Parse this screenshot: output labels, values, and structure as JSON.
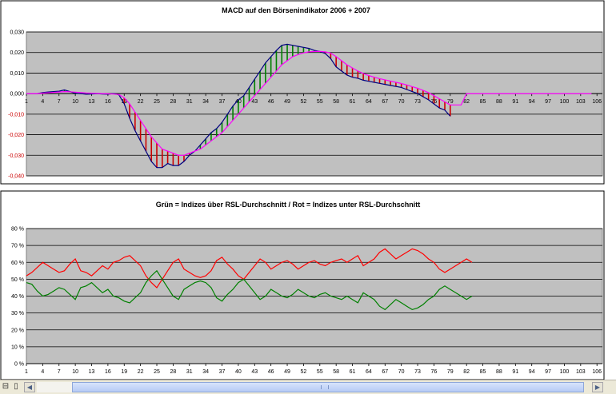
{
  "chart_data": [
    {
      "type": "line",
      "title": "MACD auf den Börsenindikator 2006 + 2007",
      "x_start": 1,
      "x_tick_labels": [
        "1",
        "4",
        "7",
        "10",
        "13",
        "16",
        "19",
        "22",
        "25",
        "28",
        "31",
        "34",
        "37",
        "40",
        "43",
        "46",
        "49",
        "52",
        "55",
        "58",
        "61",
        "64",
        "67",
        "70",
        "73",
        "76",
        "79",
        "82",
        "85",
        "88",
        "91",
        "94",
        "97",
        "100",
        "103",
        "106"
      ],
      "y_tick_labels": [
        "0,030",
        "0,020",
        "0,010",
        "0,000",
        "-0,010",
        "-0,020",
        "-0,030",
        "-0,040"
      ],
      "ylim": [
        -0.04,
        0.03
      ],
      "xlim": [
        1,
        107
      ],
      "grid": true,
      "series": [
        {
          "color": "#000080",
          "values": [
            0,
            0,
            0,
            0.0005,
            0.0008,
            0.001,
            0.0012,
            0.0018,
            0.001,
            0.0002,
            0,
            -0.0003,
            -0.0002,
            0,
            -0.0002,
            -0.0003,
            0,
            -0.0005,
            -0.005,
            -0.012,
            -0.018,
            -0.023,
            -0.028,
            -0.033,
            -0.036,
            -0.036,
            -0.034,
            -0.035,
            -0.035,
            -0.033,
            -0.03,
            -0.028,
            -0.025,
            -0.022,
            -0.019,
            -0.017,
            -0.014,
            -0.01,
            -0.006,
            -0.003,
            -0.001,
            0.003,
            0.007,
            0.011,
            0.015,
            0.018,
            0.021,
            0.0235,
            0.024,
            0.0235,
            0.023,
            0.0225,
            0.022,
            0.021,
            0.0205,
            0.0195,
            0.017,
            0.013,
            0.011,
            0.009,
            0.008,
            0.0075,
            0.0065,
            0.006,
            0.0055,
            0.005,
            0.0045,
            0.004,
            0.0035,
            0.003,
            0.002,
            0.001,
            0,
            -0.0015,
            -0.003,
            -0.005,
            -0.007,
            -0.008,
            -0.011
          ]
        },
        {
          "color": "#ff00ff",
          "values": [
            0,
            0,
            0,
            0.0002,
            0.0004,
            0.0006,
            0.0008,
            0.001,
            0.0009,
            0.0007,
            0.0005,
            0.0003,
            0.0002,
            0.0001,
            0,
            -0.0001,
            -0.0002,
            -0.0004,
            -0.002,
            -0.005,
            -0.009,
            -0.013,
            -0.017,
            -0.021,
            -0.024,
            -0.027,
            -0.028,
            -0.029,
            -0.03,
            -0.03,
            -0.029,
            -0.028,
            -0.027,
            -0.025,
            -0.023,
            -0.021,
            -0.019,
            -0.016,
            -0.013,
            -0.01,
            -0.007,
            -0.004,
            -0.001,
            0.002,
            0.005,
            0.008,
            0.011,
            0.014,
            0.016,
            0.018,
            0.019,
            0.0198,
            0.0203,
            0.0205,
            0.0205,
            0.0203,
            0.0197,
            0.018,
            0.016,
            0.014,
            0.0125,
            0.011,
            0.0098,
            0.0088,
            0.008,
            0.0073,
            0.0067,
            0.0061,
            0.0055,
            0.0049,
            0.0042,
            0.0034,
            0.0026,
            0.0016,
            0.0005,
            -0.001,
            -0.0025,
            -0.004,
            -0.0055,
            -0.0055,
            -0.0055,
            0,
            0,
            0,
            0,
            0,
            0,
            0,
            0,
            0,
            0,
            0,
            0,
            0,
            0,
            0,
            0,
            0,
            0,
            0,
            0,
            0,
            0,
            0,
            0
          ]
        }
      ],
      "histogram_up_color": "#008000",
      "histogram_down_color": "#cc0000"
    },
    {
      "type": "line",
      "title": "Grün = Indizes über RSL-Durchschnitt / Rot = Indizes unter RSL-Durchschnitt",
      "x_start": 1,
      "x_tick_labels": [
        "1",
        "4",
        "7",
        "10",
        "13",
        "16",
        "19",
        "22",
        "25",
        "28",
        "31",
        "34",
        "37",
        "40",
        "43",
        "46",
        "49",
        "52",
        "55",
        "58",
        "61",
        "64",
        "67",
        "70",
        "73",
        "76",
        "79",
        "82",
        "85",
        "88",
        "91",
        "94",
        "97",
        "100",
        "103",
        "106"
      ],
      "y_tick_labels": [
        "80 %",
        "70 %",
        "60 %",
        "50 %",
        "40 %",
        "30 %",
        "20 %",
        "10 %",
        "0 %"
      ],
      "ylim": [
        0,
        80
      ],
      "xlim": [
        1,
        107
      ],
      "grid": true,
      "series": [
        {
          "color": "#ff0000",
          "values": [
            52,
            54,
            57,
            60,
            58,
            56,
            54,
            55,
            59,
            62,
            55,
            54,
            52,
            55,
            58,
            56,
            60,
            61,
            63,
            64,
            61,
            58,
            52,
            48,
            45,
            50,
            55,
            60,
            62,
            56,
            54,
            52,
            51,
            52,
            55,
            61,
            63,
            59,
            56,
            52,
            50,
            54,
            58,
            62,
            60,
            56,
            58,
            60,
            61,
            59,
            56,
            58,
            60,
            61,
            59,
            58,
            60,
            61,
            62,
            60,
            62,
            64,
            58,
            60,
            62,
            66,
            68,
            65,
            62,
            64,
            66,
            68,
            67,
            65,
            62,
            60,
            56,
            54,
            56,
            58,
            60,
            62,
            60
          ]
        },
        {
          "color": "#008000",
          "values": [
            48,
            47,
            43,
            40,
            41,
            43,
            45,
            44,
            41,
            38,
            45,
            46,
            48,
            45,
            42,
            44,
            40,
            39,
            37,
            36,
            39,
            42,
            48,
            52,
            55,
            50,
            45,
            40,
            38,
            44,
            46,
            48,
            49,
            48,
            45,
            39,
            37,
            41,
            44,
            48,
            50,
            46,
            42,
            38,
            40,
            44,
            42,
            40,
            39,
            41,
            44,
            42,
            40,
            39,
            41,
            42,
            40,
            39,
            38,
            40,
            38,
            36,
            42,
            40,
            38,
            34,
            32,
            35,
            38,
            36,
            34,
            32,
            33,
            35,
            38,
            40,
            44,
            46,
            44,
            42,
            40,
            38,
            40
          ]
        }
      ]
    }
  ]
}
